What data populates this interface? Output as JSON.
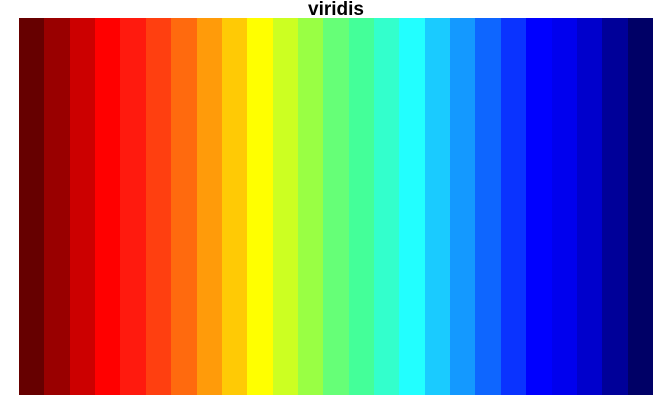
{
  "chart_data": {
    "type": "heatmap",
    "title": "viridis",
    "xlabel": "",
    "ylabel": "",
    "grid": false,
    "axes_visible": false,
    "colors": [
      "#660000",
      "#990000",
      "#cc0000",
      "#ff0000",
      "#ff1a0e",
      "#ff3f10",
      "#ff6a0e",
      "#ff9b0a",
      "#ffca05",
      "#ffff00",
      "#ccff22",
      "#99ff44",
      "#66ff77",
      "#44ff99",
      "#33ffcc",
      "#22ffff",
      "#1acbff",
      "#1499ff",
      "#0e66ff",
      "#0a33ff",
      "#0000ff",
      "#0000ee",
      "#0000cc",
      "#000099",
      "#000066"
    ]
  }
}
